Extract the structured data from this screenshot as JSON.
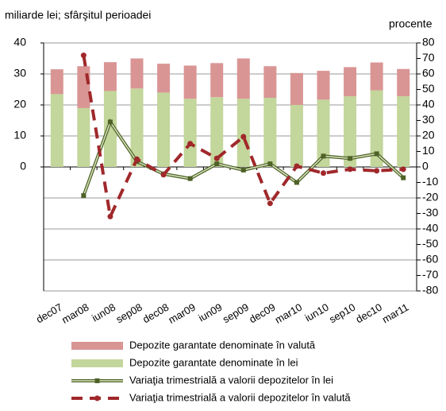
{
  "chart_data": {
    "type": "bar_line",
    "y_label": "miliarde lei; sfârşitul perioadei",
    "y2_label": "procente",
    "categories": [
      "dec07",
      "mar08",
      "iun08",
      "sep08",
      "dec08",
      "mar09",
      "iun09",
      "sep09",
      "dec09",
      "mar10",
      "iun10",
      "sep10",
      "dec10",
      "mar11"
    ],
    "ylim": [
      -40,
      40
    ],
    "yticks": [
      0,
      10,
      20,
      30,
      40
    ],
    "y2lim": [
      -80,
      80
    ],
    "y2ticks": [
      -80,
      -70,
      -60,
      -50,
      -40,
      -30,
      -20,
      -10,
      0,
      10,
      20,
      30,
      40,
      50,
      60,
      70,
      80
    ],
    "grid": true,
    "series": [
      {
        "name": "Depozite garantate denominate în valută",
        "kind": "bar",
        "color": "#d99594",
        "values": [
          8,
          13.5,
          9.3,
          9.7,
          9.3,
          10.7,
          11,
          13,
          10.2,
          10.3,
          9.3,
          9.4,
          9,
          8.8
        ]
      },
      {
        "name": "Depozite garantate denominate în lei",
        "kind": "bar",
        "color": "#c3d69b",
        "values": [
          23.5,
          19,
          24.5,
          25.3,
          24,
          22,
          22.5,
          22,
          22.3,
          20,
          21.7,
          22.8,
          24.7,
          22.8
        ]
      },
      {
        "name": "Variaţia trimestrială a valorii depozitelor în lei",
        "kind": "line",
        "axis": "y2",
        "color": "#4f6228",
        "values": [
          null,
          -18.5,
          29,
          3.5,
          -4.5,
          -7.5,
          2,
          -2,
          2,
          -10,
          7,
          5.5,
          8.5,
          -7
        ]
      },
      {
        "name": "Variaţia trimestrială a valorii depozitelor în valută",
        "kind": "dash",
        "axis": "y2",
        "color": "#a0282b",
        "values": [
          null,
          72,
          -32,
          5,
          -5,
          15,
          5.5,
          19.5,
          -23.5,
          0.5,
          -4,
          -1.5,
          -2.5,
          -1.5
        ]
      }
    ]
  }
}
